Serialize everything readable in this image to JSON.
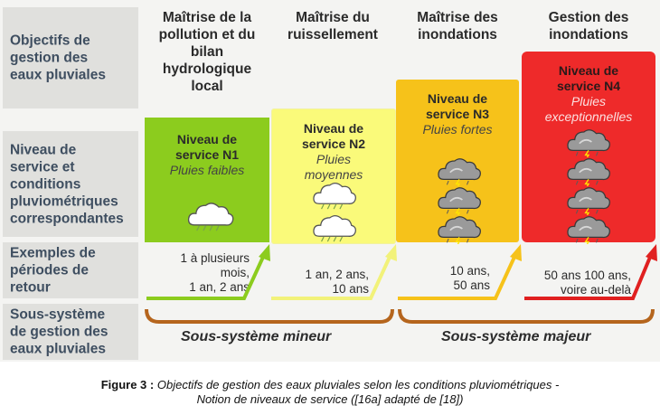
{
  "row_labels": [
    "Objectifs de\ngestion des\neaux pluviales",
    "Niveau de\nservice et\nconditions\npluviométriques\ncorrespondantes",
    "Exemples de\npériodes de\nretour",
    "Sous-système\nde gestion des\neaux pluviales"
  ],
  "columns": [
    "Maîtrise de la\npollution et du\nbilan\nhydrologique\nlocal",
    "Maîtrise du\nruissellement",
    "Maîtrise des\ninondations",
    "Gestion des\ninondations"
  ],
  "levels": [
    {
      "title": "Niveau de\nservice N1",
      "subtitle": "Pluies faibles",
      "color": "#8ccc1e",
      "clouds": 1
    },
    {
      "title": "Niveau de\nservice N2",
      "subtitle": "Pluies\nmoyennes",
      "color": "#fafa7a",
      "clouds": 2
    },
    {
      "title": "Niveau de\nservice N3",
      "subtitle": "Pluies fortes",
      "color": "#f6c21a",
      "clouds": 3
    },
    {
      "title": "Niveau de\nservice N4",
      "subtitle": "Pluies\nexceptionnelles",
      "color": "#ee2a2a",
      "clouds": 4
    }
  ],
  "periods": [
    "1 à plusieurs\nmois,\n1 an, 2 ans",
    "1 an, 2 ans,\n10 ans",
    "10 ans,\n50 ans",
    "50 ans 100 ans,\nvoire au-delà"
  ],
  "subsystems": [
    "Sous-système mineur",
    "Sous-système majeur"
  ],
  "caption": {
    "label": "Figure 3 :",
    "line1": "Objectifs de gestion des eaux pluviales selon les conditions pluviométriques -",
    "line2": "Notion de niveaux de service ([16a] adapté de [18])"
  },
  "colors": {
    "brace": "#b5651d",
    "arrow1": "#8ccc1e",
    "arrow2": "#f2f27a",
    "arrow3": "#f6c21a",
    "arrow4": "#e02020",
    "row_label_text": "#3e4e60"
  }
}
